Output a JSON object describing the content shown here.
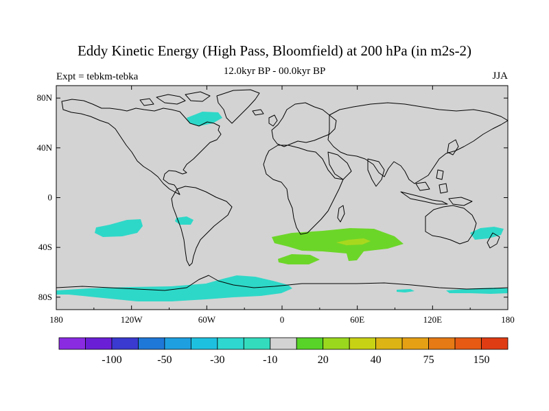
{
  "title": "Eddy Kinetic Energy (High Pass, Bloomfield) at 200 hPa (in m2s-2)",
  "subtitle": "12.0kyr BP - 00.0kyr BP",
  "left_label": "Expt = tebkm-tebka",
  "right_label": "JJA",
  "map": {
    "background": "#d3d3d3",
    "lon_range": [
      -180,
      180
    ],
    "lat_range": [
      -90,
      90
    ],
    "x_ticks": [
      {
        "lon": -180,
        "label": "180"
      },
      {
        "lon": -120,
        "label": "120W"
      },
      {
        "lon": -60,
        "label": "60W"
      },
      {
        "lon": 0,
        "label": "0"
      },
      {
        "lon": 60,
        "label": "60E"
      },
      {
        "lon": 120,
        "label": "120E"
      },
      {
        "lon": 180,
        "label": "180"
      }
    ],
    "y_ticks": [
      {
        "lat": 80,
        "label": "80N"
      },
      {
        "lat": 40,
        "label": "40N"
      },
      {
        "lat": 0,
        "label": "0"
      },
      {
        "lat": -40,
        "label": "40S"
      },
      {
        "lat": -80,
        "label": "80S"
      }
    ]
  },
  "colorbar": {
    "colors": [
      "#8a2be2",
      "#6a1fd6",
      "#3a3ad0",
      "#1e78d8",
      "#1ea0e0",
      "#1ec0e0",
      "#2ed8d0",
      "#34dcbe",
      "#d3d3d3",
      "#58d428",
      "#9ad81e",
      "#c8d214",
      "#dcb414",
      "#e6a014",
      "#e67a14",
      "#e65a14",
      "#e03c14"
    ],
    "labels": [
      {
        "index": 2,
        "text": "-100"
      },
      {
        "index": 4,
        "text": "-50"
      },
      {
        "index": 6,
        "text": "-30"
      },
      {
        "index": 8,
        "text": "-10"
      },
      {
        "index": 10,
        "text": "20"
      },
      {
        "index": 12,
        "text": "40"
      },
      {
        "index": 14,
        "text": "75"
      },
      {
        "index": 16,
        "text": "150"
      }
    ]
  },
  "anomaly_colors": {
    "cyan": "#2ed8c8",
    "green": "#6cd628",
    "yellow_green": "#a8d81e"
  }
}
